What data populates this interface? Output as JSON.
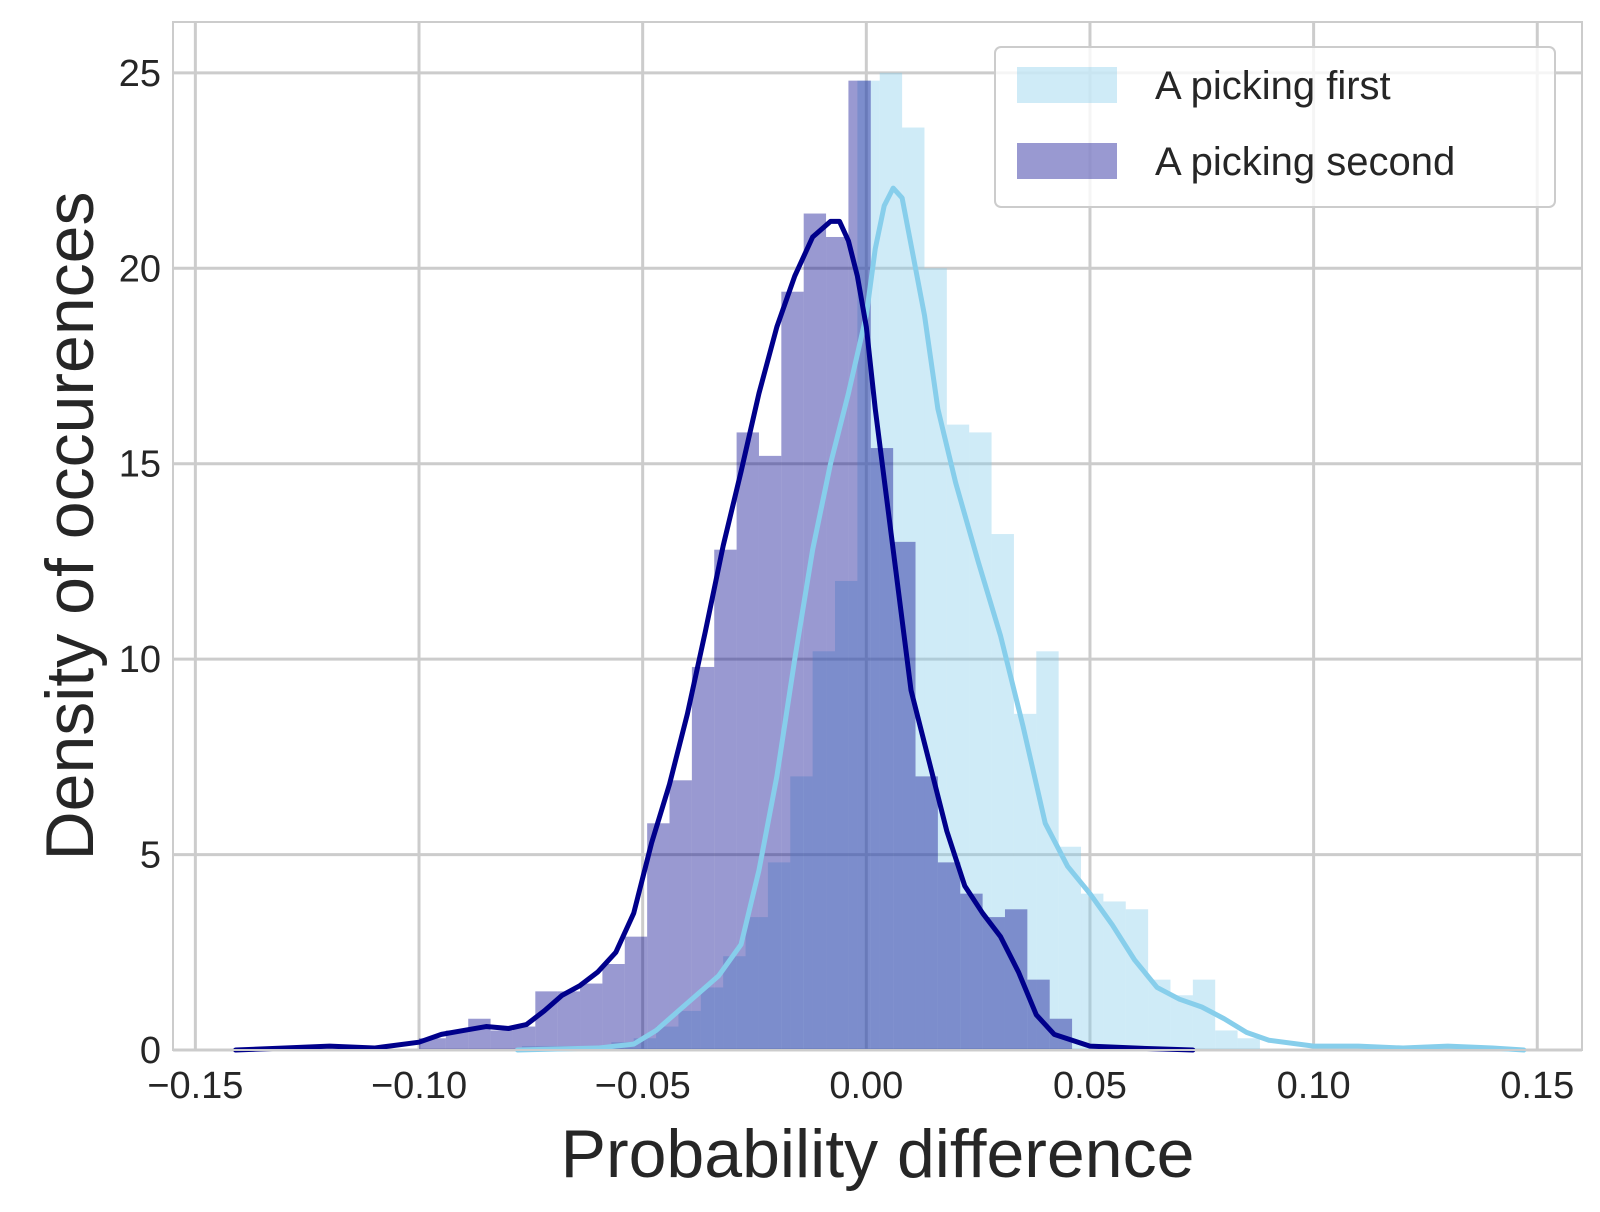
{
  "chart_data": {
    "type": "histogram_kde",
    "title": "",
    "xlabel": "Probability difference",
    "ylabel": "Density of occurences",
    "xlim": [
      -0.155,
      0.16
    ],
    "ylim": [
      0,
      26.3
    ],
    "xticks": [
      -0.15,
      -0.1,
      -0.05,
      0.0,
      0.05,
      0.1,
      0.15
    ],
    "xtick_labels": [
      "−0.15",
      "−0.10",
      "−0.05",
      "0.00",
      "0.05",
      "0.10",
      "0.15"
    ],
    "yticks": [
      0,
      5,
      10,
      15,
      20,
      25
    ],
    "ytick_labels": [
      "0",
      "5",
      "10",
      "15",
      "20",
      "25"
    ],
    "grid": true,
    "legend_position": "top-right",
    "series": [
      {
        "name": "A picking first",
        "bar_color": "#87ceeb",
        "bar_opacity": 0.4,
        "line_color": "#87ceeb",
        "bins": [
          [
            -0.077,
            -0.072,
            0.1
          ],
          [
            -0.072,
            -0.067,
            0.1
          ],
          [
            -0.067,
            -0.062,
            0.1
          ],
          [
            -0.062,
            -0.057,
            0.1
          ],
          [
            -0.057,
            -0.052,
            0.2
          ],
          [
            -0.052,
            -0.047,
            0.3
          ],
          [
            -0.047,
            -0.042,
            0.6
          ],
          [
            -0.042,
            -0.037,
            1.0
          ],
          [
            -0.037,
            -0.032,
            1.6
          ],
          [
            -0.032,
            -0.027,
            2.4
          ],
          [
            -0.027,
            -0.022,
            3.4
          ],
          [
            -0.022,
            -0.017,
            4.8
          ],
          [
            -0.017,
            -0.012,
            7.0
          ],
          [
            -0.012,
            -0.007,
            10.2
          ],
          [
            -0.007,
            -0.002,
            12.0
          ],
          [
            -0.002,
            0.003,
            24.8
          ],
          [
            0.003,
            0.008,
            25.0
          ],
          [
            0.008,
            0.013,
            23.6
          ],
          [
            0.013,
            0.018,
            20.0
          ],
          [
            0.018,
            0.023,
            16.0
          ],
          [
            0.023,
            0.028,
            15.8
          ],
          [
            0.028,
            0.033,
            13.2
          ],
          [
            0.033,
            0.038,
            8.6
          ],
          [
            0.038,
            0.043,
            10.2
          ],
          [
            0.043,
            0.048,
            5.2
          ],
          [
            0.048,
            0.053,
            4.0
          ],
          [
            0.053,
            0.058,
            3.8
          ],
          [
            0.058,
            0.063,
            3.6
          ],
          [
            0.063,
            0.068,
            1.8
          ],
          [
            0.068,
            0.073,
            1.4
          ],
          [
            0.073,
            0.078,
            1.8
          ],
          [
            0.078,
            0.083,
            0.5
          ],
          [
            0.083,
            0.088,
            0.3
          ]
        ],
        "kde": [
          [
            -0.078,
            0.0
          ],
          [
            -0.06,
            0.05
          ],
          [
            -0.052,
            0.15
          ],
          [
            -0.047,
            0.5
          ],
          [
            -0.042,
            1.0
          ],
          [
            -0.037,
            1.5
          ],
          [
            -0.033,
            1.9
          ],
          [
            -0.028,
            2.7
          ],
          [
            -0.024,
            4.6
          ],
          [
            -0.02,
            7.0
          ],
          [
            -0.016,
            10.0
          ],
          [
            -0.012,
            12.8
          ],
          [
            -0.008,
            15.0
          ],
          [
            -0.004,
            16.8
          ],
          [
            0.0,
            18.8
          ],
          [
            0.002,
            20.5
          ],
          [
            0.004,
            21.6
          ],
          [
            0.006,
            22.05
          ],
          [
            0.008,
            21.8
          ],
          [
            0.01,
            20.6
          ],
          [
            0.013,
            18.8
          ],
          [
            0.016,
            16.4
          ],
          [
            0.02,
            14.5
          ],
          [
            0.025,
            12.5
          ],
          [
            0.03,
            10.6
          ],
          [
            0.035,
            8.3
          ],
          [
            0.04,
            5.8
          ],
          [
            0.045,
            4.7
          ],
          [
            0.05,
            4.0
          ],
          [
            0.055,
            3.2
          ],
          [
            0.06,
            2.3
          ],
          [
            0.065,
            1.6
          ],
          [
            0.07,
            1.3
          ],
          [
            0.075,
            1.1
          ],
          [
            0.08,
            0.8
          ],
          [
            0.085,
            0.45
          ],
          [
            0.09,
            0.25
          ],
          [
            0.1,
            0.1
          ],
          [
            0.11,
            0.1
          ],
          [
            0.12,
            0.05
          ],
          [
            0.13,
            0.1
          ],
          [
            0.14,
            0.05
          ],
          [
            0.147,
            0.0
          ]
        ]
      },
      {
        "name": "A picking second",
        "bar_color": "#00008b",
        "bar_opacity": 0.4,
        "line_color": "#00008b",
        "bins": [
          [
            -0.1,
            -0.094,
            0.3
          ],
          [
            -0.094,
            -0.089,
            0.5
          ],
          [
            -0.089,
            -0.084,
            0.8
          ],
          [
            -0.084,
            -0.079,
            0.5
          ],
          [
            -0.079,
            -0.074,
            0.6
          ],
          [
            -0.074,
            -0.069,
            1.5
          ],
          [
            -0.069,
            -0.064,
            1.5
          ],
          [
            -0.064,
            -0.059,
            1.7
          ],
          [
            -0.059,
            -0.054,
            2.2
          ],
          [
            -0.054,
            -0.049,
            2.9
          ],
          [
            -0.049,
            -0.044,
            5.8
          ],
          [
            -0.044,
            -0.039,
            6.9
          ],
          [
            -0.039,
            -0.034,
            9.8
          ],
          [
            -0.034,
            -0.029,
            12.8
          ],
          [
            -0.029,
            -0.024,
            15.8
          ],
          [
            -0.024,
            -0.019,
            15.2
          ],
          [
            -0.019,
            -0.014,
            19.4
          ],
          [
            -0.014,
            -0.009,
            21.4
          ],
          [
            -0.009,
            -0.004,
            20.8
          ],
          [
            -0.004,
            0.001,
            24.8
          ],
          [
            0.001,
            0.006,
            15.4
          ],
          [
            0.006,
            0.011,
            13.0
          ],
          [
            0.011,
            0.016,
            7.0
          ],
          [
            0.016,
            0.021,
            4.8
          ],
          [
            0.021,
            0.026,
            4.0
          ],
          [
            0.026,
            0.031,
            3.4
          ],
          [
            0.031,
            0.036,
            3.6
          ],
          [
            0.036,
            0.041,
            1.8
          ],
          [
            0.041,
            0.046,
            0.8
          ]
        ],
        "kde": [
          [
            -0.141,
            0.0
          ],
          [
            -0.13,
            0.05
          ],
          [
            -0.12,
            0.1
          ],
          [
            -0.11,
            0.05
          ],
          [
            -0.1,
            0.2
          ],
          [
            -0.095,
            0.4
          ],
          [
            -0.09,
            0.5
          ],
          [
            -0.085,
            0.6
          ],
          [
            -0.08,
            0.55
          ],
          [
            -0.076,
            0.65
          ],
          [
            -0.072,
            1.0
          ],
          [
            -0.068,
            1.4
          ],
          [
            -0.064,
            1.65
          ],
          [
            -0.06,
            2.0
          ],
          [
            -0.056,
            2.5
          ],
          [
            -0.052,
            3.5
          ],
          [
            -0.048,
            5.3
          ],
          [
            -0.044,
            6.8
          ],
          [
            -0.04,
            8.6
          ],
          [
            -0.036,
            10.7
          ],
          [
            -0.032,
            12.9
          ],
          [
            -0.028,
            14.8
          ],
          [
            -0.024,
            16.8
          ],
          [
            -0.02,
            18.5
          ],
          [
            -0.016,
            19.8
          ],
          [
            -0.012,
            20.8
          ],
          [
            -0.008,
            21.2
          ],
          [
            -0.006,
            21.2
          ],
          [
            -0.004,
            20.7
          ],
          [
            -0.002,
            19.8
          ],
          [
            0.0,
            18.5
          ],
          [
            0.002,
            16.4
          ],
          [
            0.006,
            12.8
          ],
          [
            0.01,
            9.2
          ],
          [
            0.014,
            7.4
          ],
          [
            0.018,
            5.6
          ],
          [
            0.022,
            4.2
          ],
          [
            0.026,
            3.5
          ],
          [
            0.03,
            2.9
          ],
          [
            0.034,
            2.0
          ],
          [
            0.038,
            0.9
          ],
          [
            0.042,
            0.4
          ],
          [
            0.05,
            0.1
          ],
          [
            0.06,
            0.05
          ],
          [
            0.073,
            0.0
          ]
        ]
      }
    ]
  }
}
